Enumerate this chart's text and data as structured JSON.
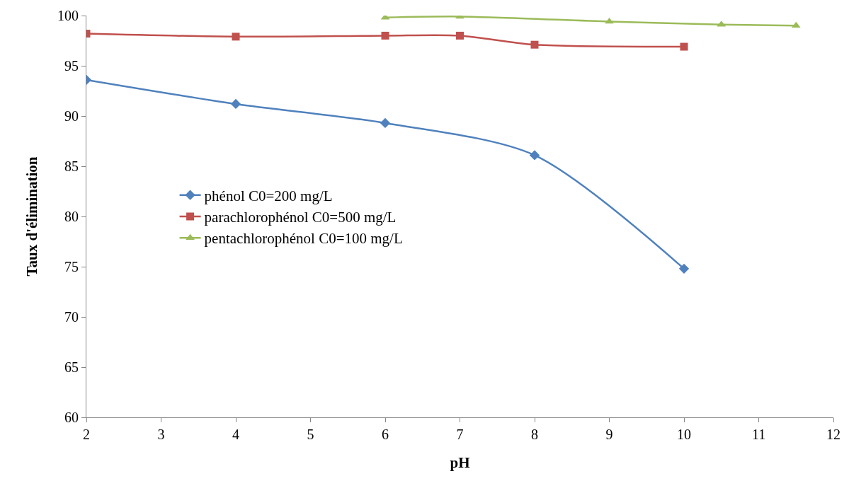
{
  "chart_data": {
    "type": "line",
    "xlabel": "pH",
    "ylabel": "Taux d'élimination",
    "xlim": [
      2,
      12
    ],
    "xticks": [
      2,
      3,
      4,
      5,
      6,
      7,
      8,
      9,
      10,
      11,
      12
    ],
    "ylim": [
      60,
      100
    ],
    "yticks": [
      60,
      65,
      70,
      75,
      80,
      85,
      90,
      95,
      100
    ],
    "grid": false,
    "legend": "left",
    "line_style": "solid",
    "series": [
      {
        "name": "phénol C0=200 mg/L",
        "color": "#4f81bd",
        "marker": "diamond",
        "x": [
          2,
          4,
          6,
          8,
          10
        ],
        "values": [
          93.6,
          91.2,
          89.3,
          86.1,
          74.8
        ]
      },
      {
        "name": "parachlorophénol C0=500 mg/L",
        "color": "#c0504d",
        "marker": "square",
        "x": [
          2,
          4,
          6,
          7,
          8,
          10
        ],
        "values": [
          98.2,
          97.9,
          98.0,
          98.0,
          97.1,
          96.9
        ]
      },
      {
        "name": "pentachlorophénol C0=100 mg/L",
        "color": "#9bbb59",
        "marker": "triangle",
        "x": [
          6,
          7,
          9,
          10.5,
          11.5
        ],
        "values": [
          99.8,
          99.9,
          99.4,
          99.1,
          99.0
        ]
      }
    ]
  }
}
